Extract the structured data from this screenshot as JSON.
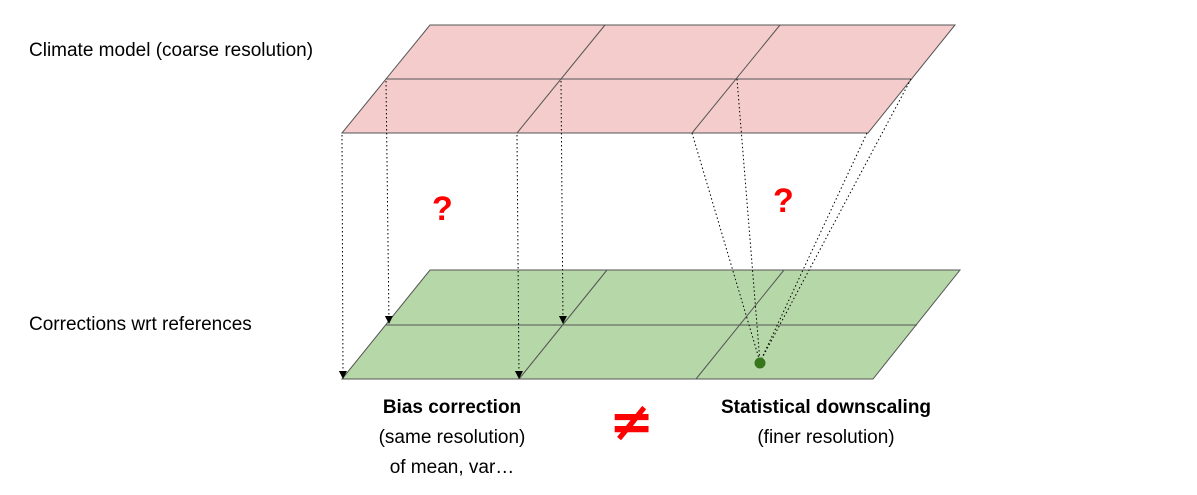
{
  "labels": {
    "climate_model": "Climate model (coarse resolution)",
    "corrections": "Corrections wrt references"
  },
  "question_mark": "?",
  "not_equal_symbol": "≠",
  "bias_correction": {
    "title": "Bias correction",
    "line1": "(same resolution)",
    "line2": "of mean, var…"
  },
  "statistical_downscaling": {
    "title": "Statistical downscaling",
    "line1": "(finer resolution)"
  },
  "colors": {
    "top_grid_fill": "#f4cccc",
    "bottom_grid_fill": "#b6d7a8",
    "grid_stroke": "#555555",
    "question_mark": "#ff0000",
    "not_equal": "#ff0000",
    "point": "#38761d",
    "arrow": "#000000"
  }
}
